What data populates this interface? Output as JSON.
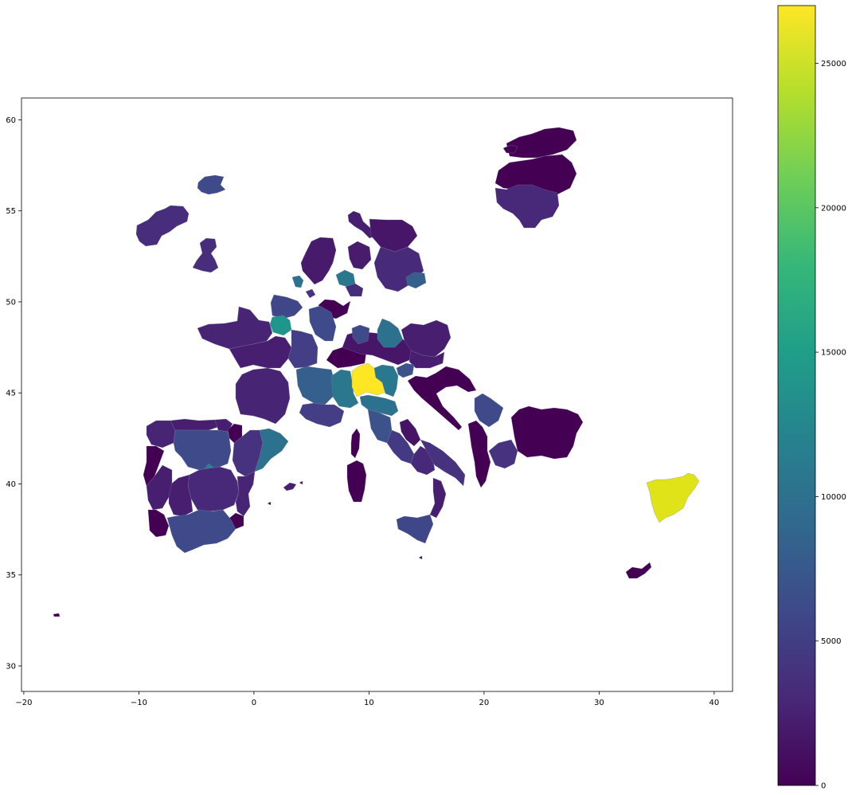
{
  "chart_data": {
    "type": "choropleth",
    "x_axis": {
      "range": [
        -20.2,
        41.6
      ],
      "ticks": [
        -20,
        -10,
        0,
        10,
        20,
        30,
        40
      ],
      "tick_labels": [
        "−20",
        "−10",
        "0",
        "10",
        "20",
        "30",
        "40"
      ]
    },
    "y_axis": {
      "range": [
        28.6,
        61.2
      ],
      "ticks": [
        30,
        35,
        40,
        45,
        50,
        55,
        60
      ],
      "tick_labels": [
        "30",
        "35",
        "40",
        "45",
        "50",
        "55",
        "60"
      ]
    },
    "colorbar": {
      "range": [
        0,
        27000
      ],
      "ticks": [
        0,
        5000,
        10000,
        15000,
        20000,
        25000
      ],
      "tick_labels": [
        "0",
        "5000",
        "10000",
        "15000",
        "20000",
        "25000"
      ],
      "colormap": "viridis",
      "colormap_stops": [
        "#440154",
        "#482878",
        "#3e4989",
        "#31688e",
        "#26828e",
        "#1f9e89",
        "#35b779",
        "#6ece58",
        "#b5de2b",
        "#fde725"
      ]
    },
    "title": "",
    "xlabel": "",
    "ylabel": "",
    "grid": false
  }
}
